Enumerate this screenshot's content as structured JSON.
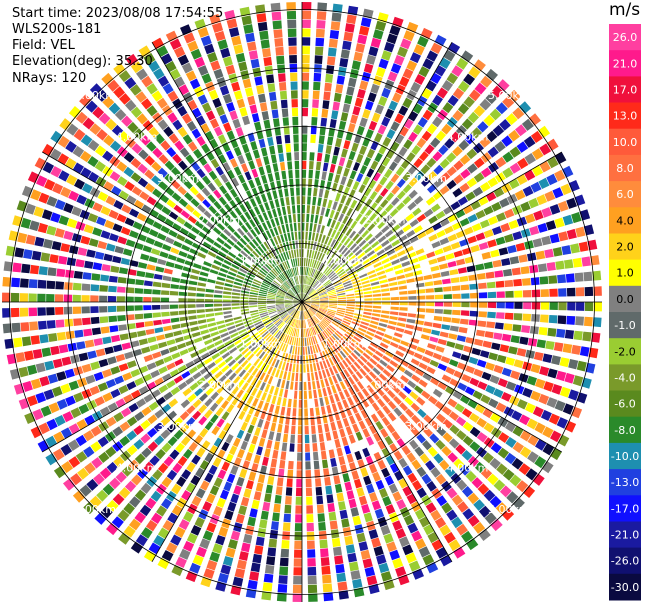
{
  "info": {
    "start_time": "Start time: 2023/08/08 17:54:55",
    "instrument": "WLS200s-181",
    "field": "Field: VEL",
    "elevation": "Elevation(deg): 35.30",
    "nrays": "NRays: 120"
  },
  "colorbar": {
    "unit": "m/s",
    "ticks": [
      "26.0",
      "21.0",
      "17.0",
      "13.0",
      "10.0",
      "8.0",
      "6.0",
      "4.0",
      "2.0",
      "1.0",
      "0.0",
      "-1.0",
      "-2.0",
      "-4.0",
      "-6.0",
      "-8.0",
      "-10.0",
      "-13.0",
      "-17.0",
      "-21.0",
      "-26.0",
      "-30.0"
    ],
    "colors": [
      "#ff3fa0",
      "#ff1a8c",
      "#f0103c",
      "#ff2a1a",
      "#ff5a3a",
      "#ff7040",
      "#ff8c3c",
      "#ffa020",
      "#ffd21a",
      "#ffff00",
      "#808080",
      "#606a6a",
      "#9acd32",
      "#7a9a2a",
      "#5a8a1e",
      "#2a8a2a",
      "#1e8fb0",
      "#2040e0",
      "#1010ff",
      "#1a1aa0",
      "#101070",
      "#0a0a40"
    ]
  },
  "chart_data": {
    "type": "polar-ppi",
    "field": "VEL",
    "unit": "m/s",
    "nrays": 120,
    "range_rings_km": [
      "1.00km",
      "2.00km",
      "3.00km",
      "4.00km",
      "5.00km"
    ],
    "range_ring_values_km": [
      1,
      2,
      3,
      4,
      5
    ],
    "color_range": [
      -30,
      26
    ]
  }
}
